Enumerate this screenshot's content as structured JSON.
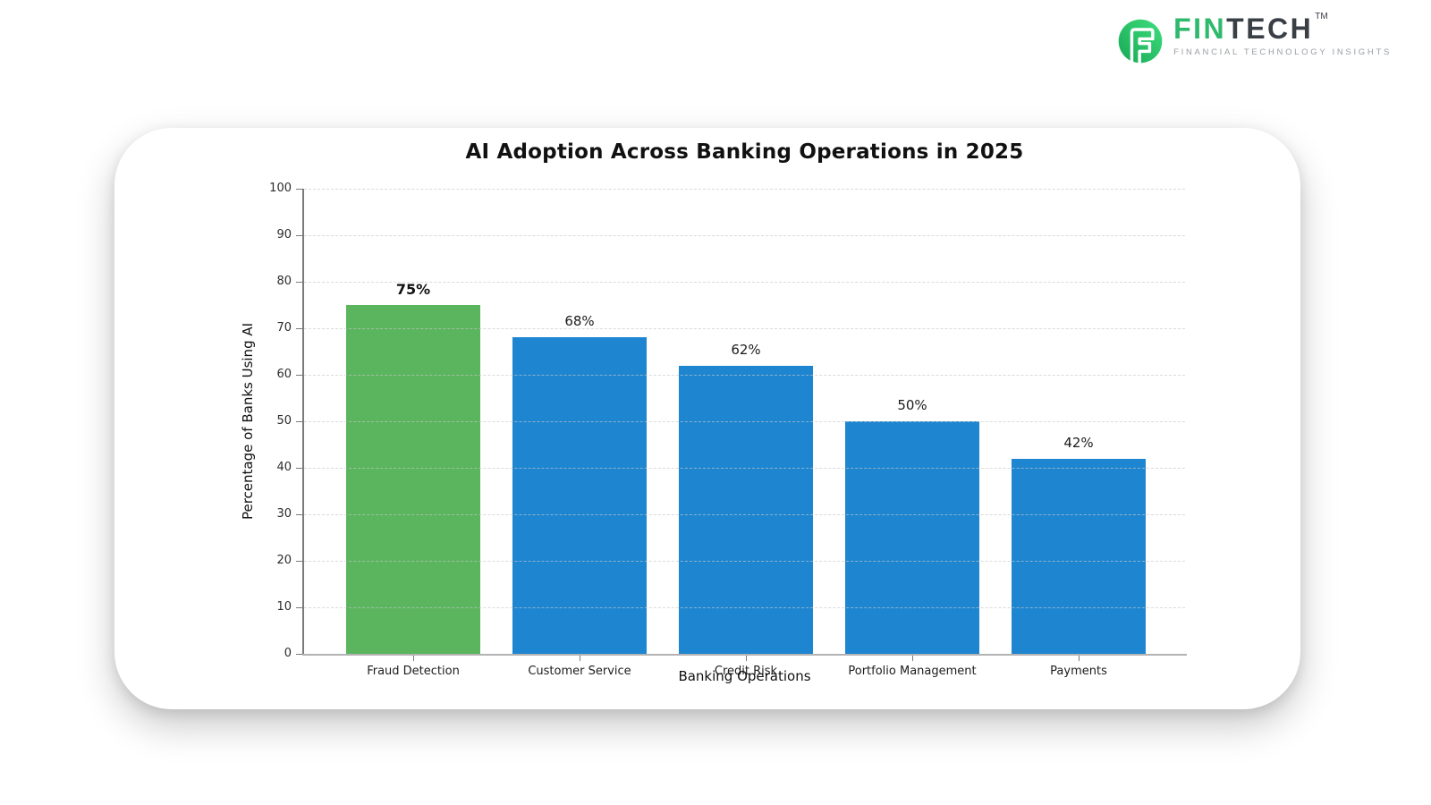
{
  "logo": {
    "brand_fin": "FIN",
    "brand_tech": "TECH",
    "trademark": "TM",
    "tagline": "FINANCIAL TECHNOLOGY INSIGHTS",
    "colors": {
      "icon_gradient_light": "#3ede7d",
      "icon_gradient_dark": "#17a854",
      "fin_green": "#2eb96c",
      "tech_dark": "#3a3f45",
      "tagline_gray": "#9a9ea3"
    }
  },
  "chart_data": {
    "type": "bar",
    "title": "AI Adoption Across Banking Operations in 2025",
    "xlabel": "Banking Operations",
    "ylabel": "Percentage of Banks Using AI",
    "categories": [
      "Fraud Detection",
      "Customer Service",
      "Credit Risk",
      "Portfolio Management",
      "Payments"
    ],
    "values": [
      75,
      68,
      62,
      50,
      42
    ],
    "value_labels": [
      "75%",
      "68%",
      "62%",
      "50%",
      "42%"
    ],
    "bar_colors": [
      "#5ab55e",
      "#1e86d1",
      "#1e86d1",
      "#1e86d1",
      "#1e86d1"
    ],
    "highlight_index": 0,
    "ylim": [
      0,
      100
    ],
    "yticks": [
      0,
      10,
      20,
      30,
      40,
      50,
      60,
      70,
      80,
      90,
      100
    ],
    "grid": "horizontal-dashed",
    "legend": "none"
  }
}
